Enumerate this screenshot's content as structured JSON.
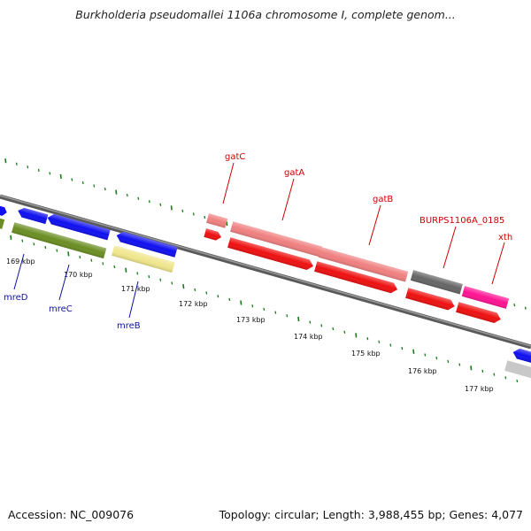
{
  "title": "Burkholderia pseudomallei 1106a chromosome I, complete genom...",
  "footer": {
    "accession": "Accession: NC_009076",
    "summary": "Topology: circular; Length: 3,988,455 bp; Genes: 4,077"
  },
  "colors": {
    "backbone": "#707070",
    "tick": "#1a7a1a",
    "label_red": "#cc0000",
    "label_blue": "#1010a0",
    "gene_blue": "#1010f0",
    "gene_red": "#ee1111",
    "gene_pink": "#f08080",
    "gene_olive": "#6b8e23",
    "gene_khaki": "#f0e68c",
    "gene_dark_gray": "#666666",
    "gene_magenta": "#ff1493",
    "gene_light_gray": "#c8c8c8"
  },
  "scale_labels": [
    "169 kbp",
    "170 kbp",
    "171 kbp",
    "172 kbp",
    "173 kbp",
    "174 kbp",
    "175 kbp",
    "176 kbp",
    "177 kbp"
  ],
  "upper_labels": [
    "gatC",
    "gatA",
    "gatB",
    "BURPS1106A_0185",
    "xth"
  ],
  "lower_labels": [
    "mreD",
    "mreC",
    "mreB"
  ]
}
